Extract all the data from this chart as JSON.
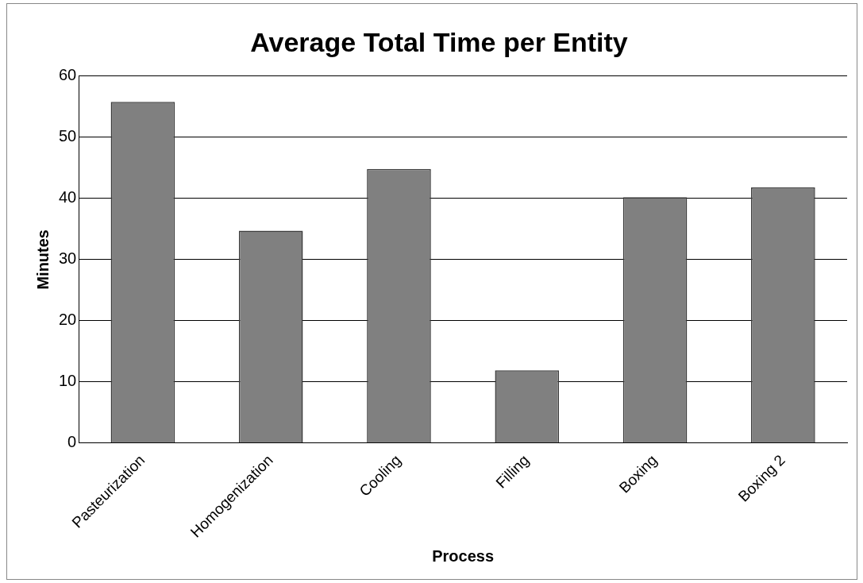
{
  "chart_data": {
    "type": "bar",
    "title": "Average Total Time per Entity",
    "xlabel": "Process",
    "ylabel": "Minutes",
    "categories": [
      "Pasteurization",
      "Homogenization",
      "Cooling",
      "Filling",
      "Boxing",
      "Boxing 2"
    ],
    "values": [
      55.8,
      34.7,
      44.8,
      11.9,
      40.2,
      41.8
    ],
    "color": "#808080",
    "ylim": [
      0,
      60
    ],
    "yticks": [
      0,
      10,
      20,
      30,
      40,
      50,
      60
    ],
    "grid": "y"
  }
}
